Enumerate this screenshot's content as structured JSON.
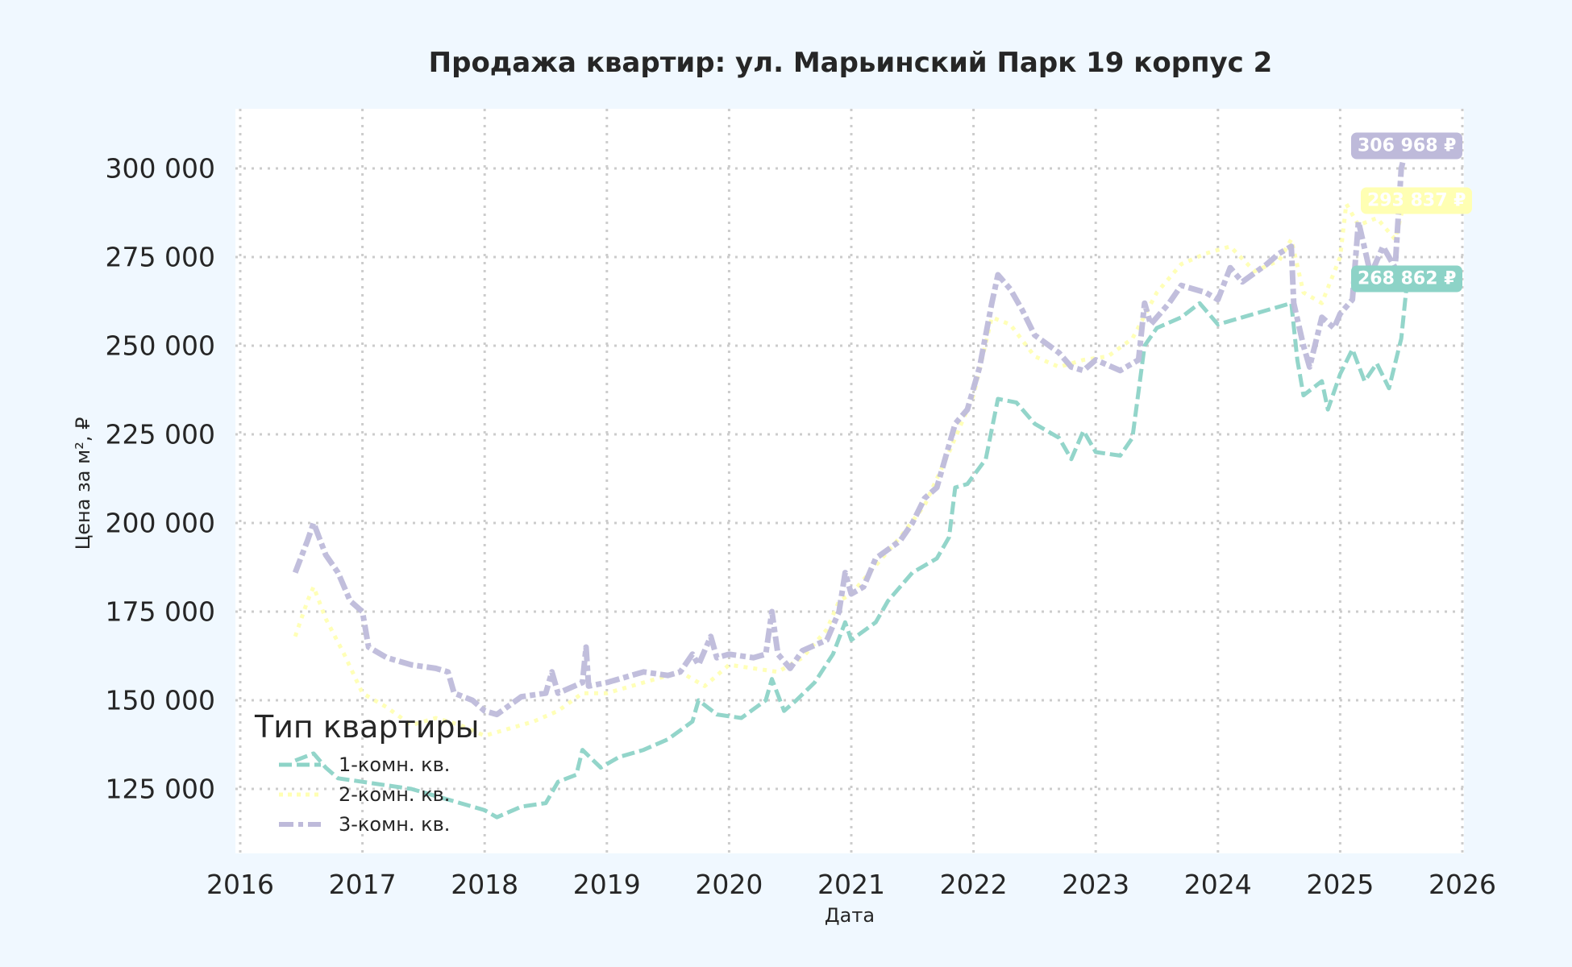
{
  "title": "Продажа квартир: ул. Марьинский Парк 19 корпус 2",
  "axes": {
    "xlabel": "Дата",
    "ylabel": "Цена за м², ₽",
    "xticks": [
      "2016",
      "2017",
      "2018",
      "2019",
      "2020",
      "2021",
      "2022",
      "2023",
      "2024",
      "2025",
      "2026"
    ],
    "yticks": [
      "125 000",
      "150 000",
      "175 000",
      "200 000",
      "225 000",
      "250 000",
      "275 000",
      "300 000"
    ]
  },
  "legend": {
    "title": "Тип квартиры",
    "items": [
      "1-комн. кв.",
      "2-комн. кв.",
      "3-комн. кв."
    ]
  },
  "end_labels": {
    "s3": "306 968 ₽",
    "s2": "293 837 ₽",
    "s1": "268 862 ₽"
  },
  "colors": {
    "s1": "#8dd3c7",
    "s2": "#ffffb3",
    "s3": "#bebada",
    "background": "#f0f8ff",
    "plot": "#ffffff"
  },
  "chart_data": {
    "type": "line",
    "title": "Продажа квартир: ул. Марьинский Парк 19 корпус 2",
    "xlabel": "Дата",
    "ylabel": "Цена за м², ₽",
    "xlim": [
      2016,
      2026
    ],
    "ylim": [
      107000,
      318000
    ],
    "grid": true,
    "legend_position": "lower left",
    "series": [
      {
        "name": "1-комн. кв.",
        "style": "dashed",
        "color": "#8dd3c7",
        "last_value": 268862,
        "points": [
          [
            2016.45,
            133000
          ],
          [
            2016.6,
            135000
          ],
          [
            2016.7,
            131000
          ],
          [
            2016.8,
            128000
          ],
          [
            2017.0,
            127000
          ],
          [
            2017.2,
            126000
          ],
          [
            2017.4,
            125000
          ],
          [
            2017.6,
            123000
          ],
          [
            2017.8,
            121000
          ],
          [
            2018.0,
            119000
          ],
          [
            2018.1,
            117000
          ],
          [
            2018.3,
            120000
          ],
          [
            2018.5,
            121000
          ],
          [
            2018.6,
            127000
          ],
          [
            2018.75,
            129000
          ],
          [
            2018.8,
            136000
          ],
          [
            2018.95,
            131000
          ],
          [
            2019.1,
            134000
          ],
          [
            2019.3,
            136000
          ],
          [
            2019.5,
            139000
          ],
          [
            2019.7,
            144000
          ],
          [
            2019.75,
            150000
          ],
          [
            2019.9,
            146000
          ],
          [
            2020.1,
            145000
          ],
          [
            2020.3,
            150000
          ],
          [
            2020.35,
            156000
          ],
          [
            2020.45,
            147000
          ],
          [
            2020.55,
            150000
          ],
          [
            2020.7,
            155000
          ],
          [
            2020.85,
            163000
          ],
          [
            2020.95,
            172000
          ],
          [
            2021.0,
            167000
          ],
          [
            2021.2,
            172000
          ],
          [
            2021.3,
            178000
          ],
          [
            2021.5,
            186000
          ],
          [
            2021.7,
            190000
          ],
          [
            2021.8,
            196000
          ],
          [
            2021.85,
            210000
          ],
          [
            2021.95,
            211000
          ],
          [
            2022.1,
            218000
          ],
          [
            2022.2,
            235000
          ],
          [
            2022.35,
            234000
          ],
          [
            2022.5,
            228000
          ],
          [
            2022.7,
            224000
          ],
          [
            2022.8,
            218000
          ],
          [
            2022.9,
            226000
          ],
          [
            2023.0,
            220000
          ],
          [
            2023.2,
            219000
          ],
          [
            2023.3,
            224000
          ],
          [
            2023.4,
            250000
          ],
          [
            2023.5,
            255000
          ],
          [
            2023.7,
            258000
          ],
          [
            2023.85,
            262000
          ],
          [
            2024.0,
            256000
          ],
          [
            2024.2,
            258000
          ],
          [
            2024.4,
            260000
          ],
          [
            2024.6,
            262000
          ],
          [
            2024.65,
            246000
          ],
          [
            2024.7,
            236000
          ],
          [
            2024.85,
            240000
          ],
          [
            2024.9,
            232000
          ],
          [
            2025.0,
            242000
          ],
          [
            2025.1,
            249000
          ],
          [
            2025.2,
            240000
          ],
          [
            2025.3,
            245000
          ],
          [
            2025.4,
            238000
          ],
          [
            2025.5,
            252000
          ],
          [
            2025.55,
            268862
          ]
        ]
      },
      {
        "name": "2-комн. кв.",
        "style": "dotted",
        "color": "#ffffb3",
        "last_value": 293837,
        "points": [
          [
            2016.45,
            168000
          ],
          [
            2016.55,
            178000
          ],
          [
            2016.6,
            182000
          ],
          [
            2016.7,
            173000
          ],
          [
            2016.85,
            163000
          ],
          [
            2017.0,
            152000
          ],
          [
            2017.2,
            148000
          ],
          [
            2017.4,
            143000
          ],
          [
            2017.6,
            145000
          ],
          [
            2017.8,
            143000
          ],
          [
            2018.0,
            140000
          ],
          [
            2018.2,
            142000
          ],
          [
            2018.4,
            144000
          ],
          [
            2018.6,
            147000
          ],
          [
            2018.8,
            152000
          ],
          [
            2019.0,
            152000
          ],
          [
            2019.3,
            155000
          ],
          [
            2019.6,
            158000
          ],
          [
            2019.8,
            154000
          ],
          [
            2020.0,
            160000
          ],
          [
            2020.2,
            159000
          ],
          [
            2020.4,
            158000
          ],
          [
            2020.6,
            162000
          ],
          [
            2020.8,
            170000
          ],
          [
            2020.9,
            178000
          ],
          [
            2021.0,
            180000
          ],
          [
            2021.2,
            188000
          ],
          [
            2021.4,
            196000
          ],
          [
            2021.6,
            205000
          ],
          [
            2021.8,
            220000
          ],
          [
            2022.0,
            236000
          ],
          [
            2022.15,
            258000
          ],
          [
            2022.3,
            256000
          ],
          [
            2022.5,
            247000
          ],
          [
            2022.7,
            244000
          ],
          [
            2022.9,
            246000
          ],
          [
            2023.1,
            247000
          ],
          [
            2023.3,
            252000
          ],
          [
            2023.5,
            265000
          ],
          [
            2023.7,
            273000
          ],
          [
            2023.9,
            276000
          ],
          [
            2024.1,
            278000
          ],
          [
            2024.3,
            271000
          ],
          [
            2024.5,
            274000
          ],
          [
            2024.6,
            280000
          ],
          [
            2024.7,
            265000
          ],
          [
            2024.85,
            262000
          ],
          [
            2025.0,
            275000
          ],
          [
            2025.05,
            290000
          ],
          [
            2025.15,
            284000
          ],
          [
            2025.3,
            286000
          ],
          [
            2025.45,
            280000
          ],
          [
            2025.55,
            293837
          ]
        ]
      },
      {
        "name": "3-комн. кв.",
        "style": "dashed",
        "color": "#bebada",
        "last_value": 306968,
        "points": [
          [
            2016.45,
            186000
          ],
          [
            2016.55,
            195000
          ],
          [
            2016.6,
            200000
          ],
          [
            2016.7,
            191000
          ],
          [
            2016.8,
            186000
          ],
          [
            2016.9,
            178000
          ],
          [
            2017.0,
            175000
          ],
          [
            2017.05,
            165000
          ],
          [
            2017.2,
            162000
          ],
          [
            2017.4,
            160000
          ],
          [
            2017.6,
            159000
          ],
          [
            2017.7,
            158000
          ],
          [
            2017.75,
            152000
          ],
          [
            2017.9,
            150000
          ],
          [
            2018.0,
            147000
          ],
          [
            2018.1,
            146000
          ],
          [
            2018.3,
            151000
          ],
          [
            2018.5,
            152000
          ],
          [
            2018.55,
            158000
          ],
          [
            2018.6,
            152000
          ],
          [
            2018.8,
            155000
          ],
          [
            2018.83,
            165000
          ],
          [
            2018.85,
            154000
          ],
          [
            2019.0,
            155000
          ],
          [
            2019.3,
            158000
          ],
          [
            2019.5,
            157000
          ],
          [
            2019.6,
            158000
          ],
          [
            2019.7,
            163000
          ],
          [
            2019.75,
            160000
          ],
          [
            2019.85,
            168000
          ],
          [
            2019.9,
            162000
          ],
          [
            2020.0,
            163000
          ],
          [
            2020.2,
            162000
          ],
          [
            2020.3,
            163000
          ],
          [
            2020.35,
            175000
          ],
          [
            2020.4,
            163000
          ],
          [
            2020.5,
            159000
          ],
          [
            2020.6,
            164000
          ],
          [
            2020.8,
            167000
          ],
          [
            2020.9,
            175000
          ],
          [
            2020.95,
            186000
          ],
          [
            2021.0,
            180000
          ],
          [
            2021.1,
            182000
          ],
          [
            2021.2,
            190000
          ],
          [
            2021.4,
            195000
          ],
          [
            2021.5,
            200000
          ],
          [
            2021.6,
            207000
          ],
          [
            2021.7,
            210000
          ],
          [
            2021.8,
            222000
          ],
          [
            2021.85,
            228000
          ],
          [
            2021.95,
            232000
          ],
          [
            2022.05,
            244000
          ],
          [
            2022.15,
            262000
          ],
          [
            2022.2,
            270000
          ],
          [
            2022.3,
            266000
          ],
          [
            2022.4,
            260000
          ],
          [
            2022.5,
            253000
          ],
          [
            2022.7,
            248000
          ],
          [
            2022.8,
            244000
          ],
          [
            2022.9,
            243000
          ],
          [
            2023.0,
            246000
          ],
          [
            2023.2,
            243000
          ],
          [
            2023.35,
            246000
          ],
          [
            2023.4,
            262000
          ],
          [
            2023.45,
            256000
          ],
          [
            2023.6,
            262000
          ],
          [
            2023.7,
            267000
          ],
          [
            2023.9,
            265000
          ],
          [
            2024.0,
            263000
          ],
          [
            2024.1,
            272000
          ],
          [
            2024.2,
            268000
          ],
          [
            2024.4,
            273000
          ],
          [
            2024.5,
            276000
          ],
          [
            2024.6,
            278000
          ],
          [
            2024.62,
            262000
          ],
          [
            2024.7,
            250000
          ],
          [
            2024.75,
            244000
          ],
          [
            2024.85,
            258000
          ],
          [
            2024.95,
            255000
          ],
          [
            2025.0,
            259000
          ],
          [
            2025.1,
            263000
          ],
          [
            2025.15,
            285000
          ],
          [
            2025.25,
            270000
          ],
          [
            2025.35,
            278000
          ],
          [
            2025.45,
            272000
          ],
          [
            2025.5,
            300000
          ],
          [
            2025.55,
            306968
          ]
        ]
      }
    ]
  }
}
